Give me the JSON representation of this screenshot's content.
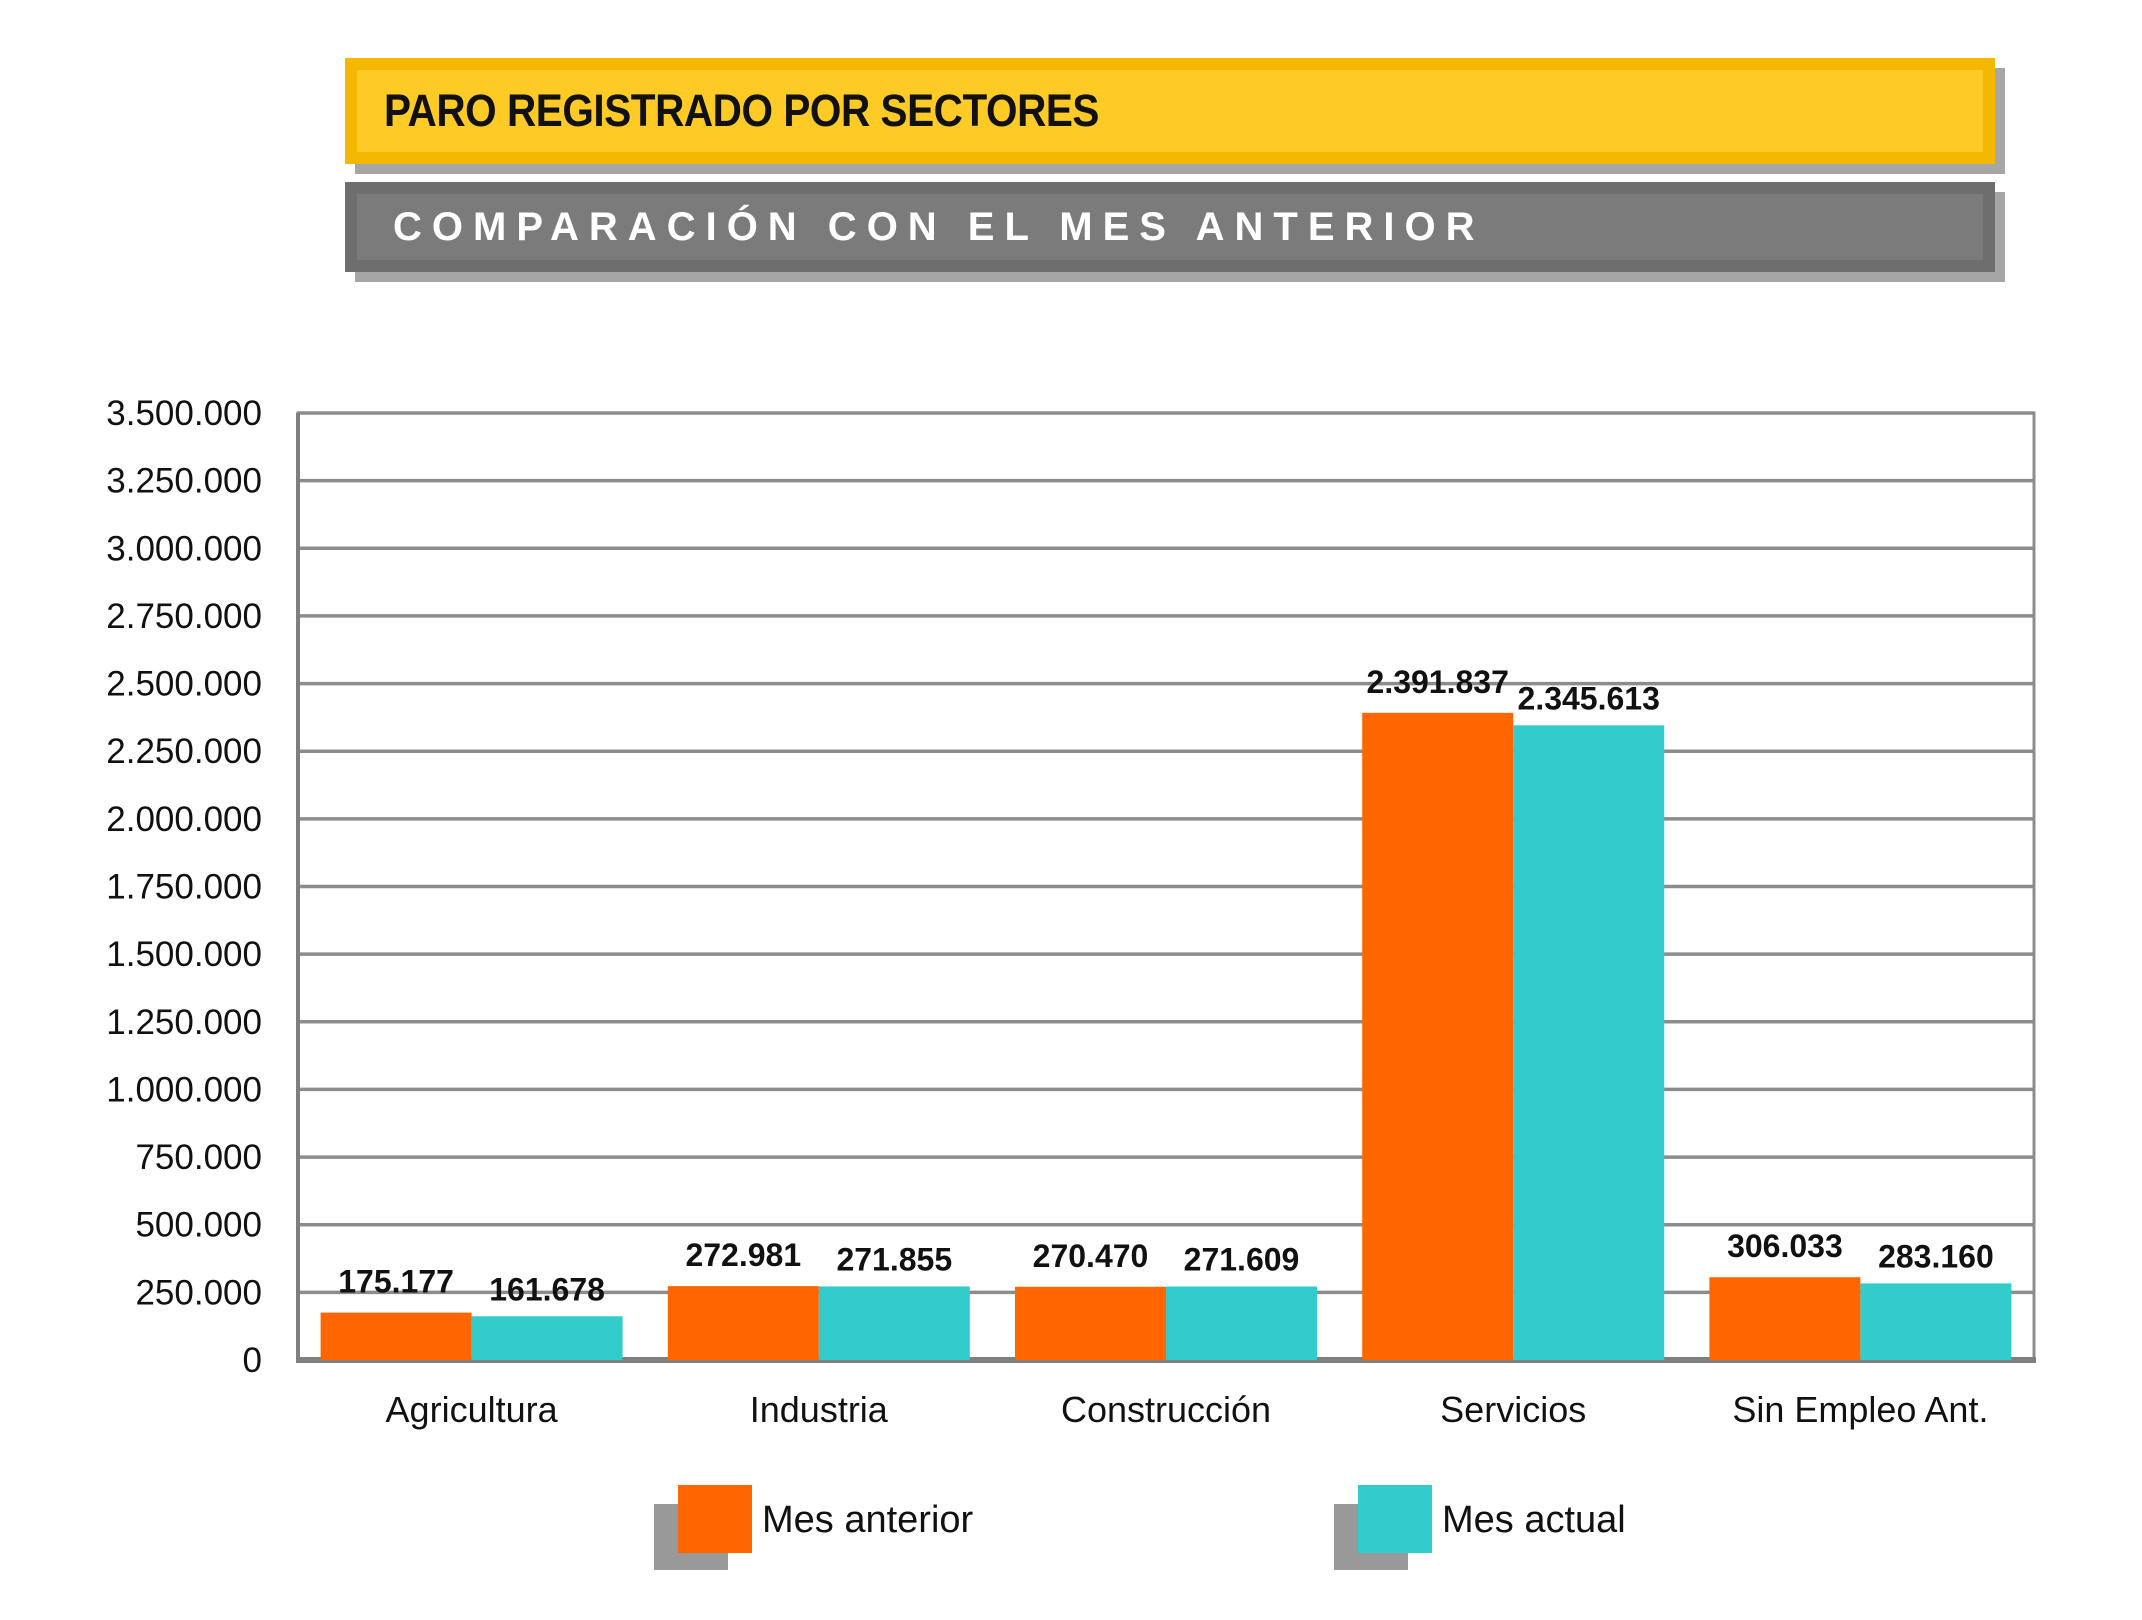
{
  "header": {
    "title": "PARO REGISTRADO POR SECTORES",
    "subtitle": "COMPARACIÓN CON EL MES ANTERIOR"
  },
  "chart_data": {
    "type": "bar",
    "title": "PARO REGISTRADO POR SECTORES",
    "subtitle": "COMPARACIÓN CON EL MES ANTERIOR",
    "categories": [
      "Agricultura",
      "Industria",
      "Construcción",
      "Servicios",
      "Sin Empleo Ant."
    ],
    "series": [
      {
        "name": "Mes anterior",
        "color": "#ff6600",
        "values": [
          175177,
          272981,
          270470,
          2391837,
          306033
        ],
        "labels": [
          "175.177",
          "272.981",
          "270.470",
          "2.391.837",
          "306.033"
        ]
      },
      {
        "name": "Mes actual",
        "color": "#33cccc",
        "values": [
          161678,
          271855,
          271609,
          2345613,
          283160
        ],
        "labels": [
          "161.678",
          "271.855",
          "271.609",
          "2.345.613",
          "283.160"
        ]
      }
    ],
    "ylim": [
      0,
      3500000
    ],
    "yticks": [
      0,
      250000,
      500000,
      750000,
      1000000,
      1250000,
      1500000,
      1750000,
      2000000,
      2250000,
      2500000,
      2750000,
      3000000,
      3250000,
      3500000
    ],
    "ytick_labels": [
      "0",
      "250.000",
      "500.000",
      "750.000",
      "1.000.000",
      "1.250.000",
      "1.500.000",
      "1.750.000",
      "2.000.000",
      "2.250.000",
      "2.500.000",
      "2.750.000",
      "3.000.000",
      "3.250.000",
      "3.500.000"
    ],
    "xlabel": "",
    "ylabel": "",
    "grid": true,
    "legend_position": "bottom",
    "colors": {
      "grid": "#8c8c8c",
      "axis": "#7f7f7f",
      "legend_shadow": "#999999"
    }
  }
}
